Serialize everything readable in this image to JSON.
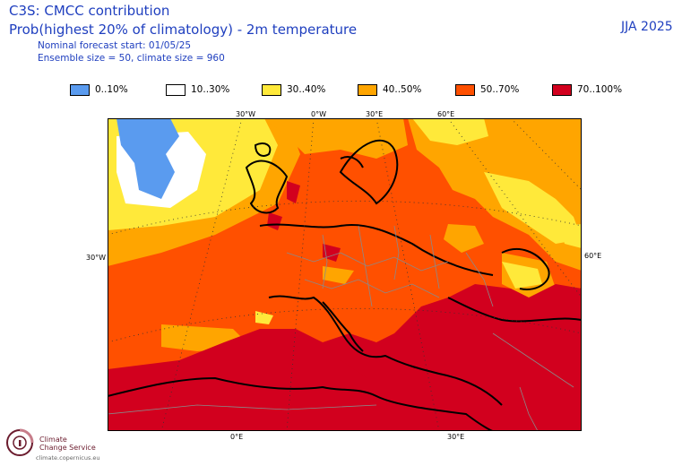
{
  "header": {
    "title_line1": "C3S: CMCC contribution",
    "title_line2": "Prob(highest 20% of climatology) - 2m temperature",
    "forecast_start": "Nominal forecast start: 01/05/25",
    "ensemble": "Ensemble size = 50, climate size = 960",
    "season": "JJA 2025"
  },
  "legend": [
    {
      "label": "0..10%",
      "color": "#5a9bef"
    },
    {
      "label": "10..30%",
      "color": "#ffffff"
    },
    {
      "label": "30..40%",
      "color": "#ffe93a"
    },
    {
      "label": "40..50%",
      "color": "#ffa500"
    },
    {
      "label": "50..70%",
      "color": "#ff5000"
    },
    {
      "label": "70..100%",
      "color": "#d2001e"
    }
  ],
  "grid_labels": {
    "top": [
      "30°W",
      "0°W",
      "30°E",
      "60°E"
    ],
    "bottom": [
      "0°E",
      "30°E"
    ],
    "left": "30°W",
    "right": "60°E"
  },
  "logo": {
    "line1": "Climate",
    "line2": "Change Service",
    "url": "climate.copernicus.eu"
  }
}
